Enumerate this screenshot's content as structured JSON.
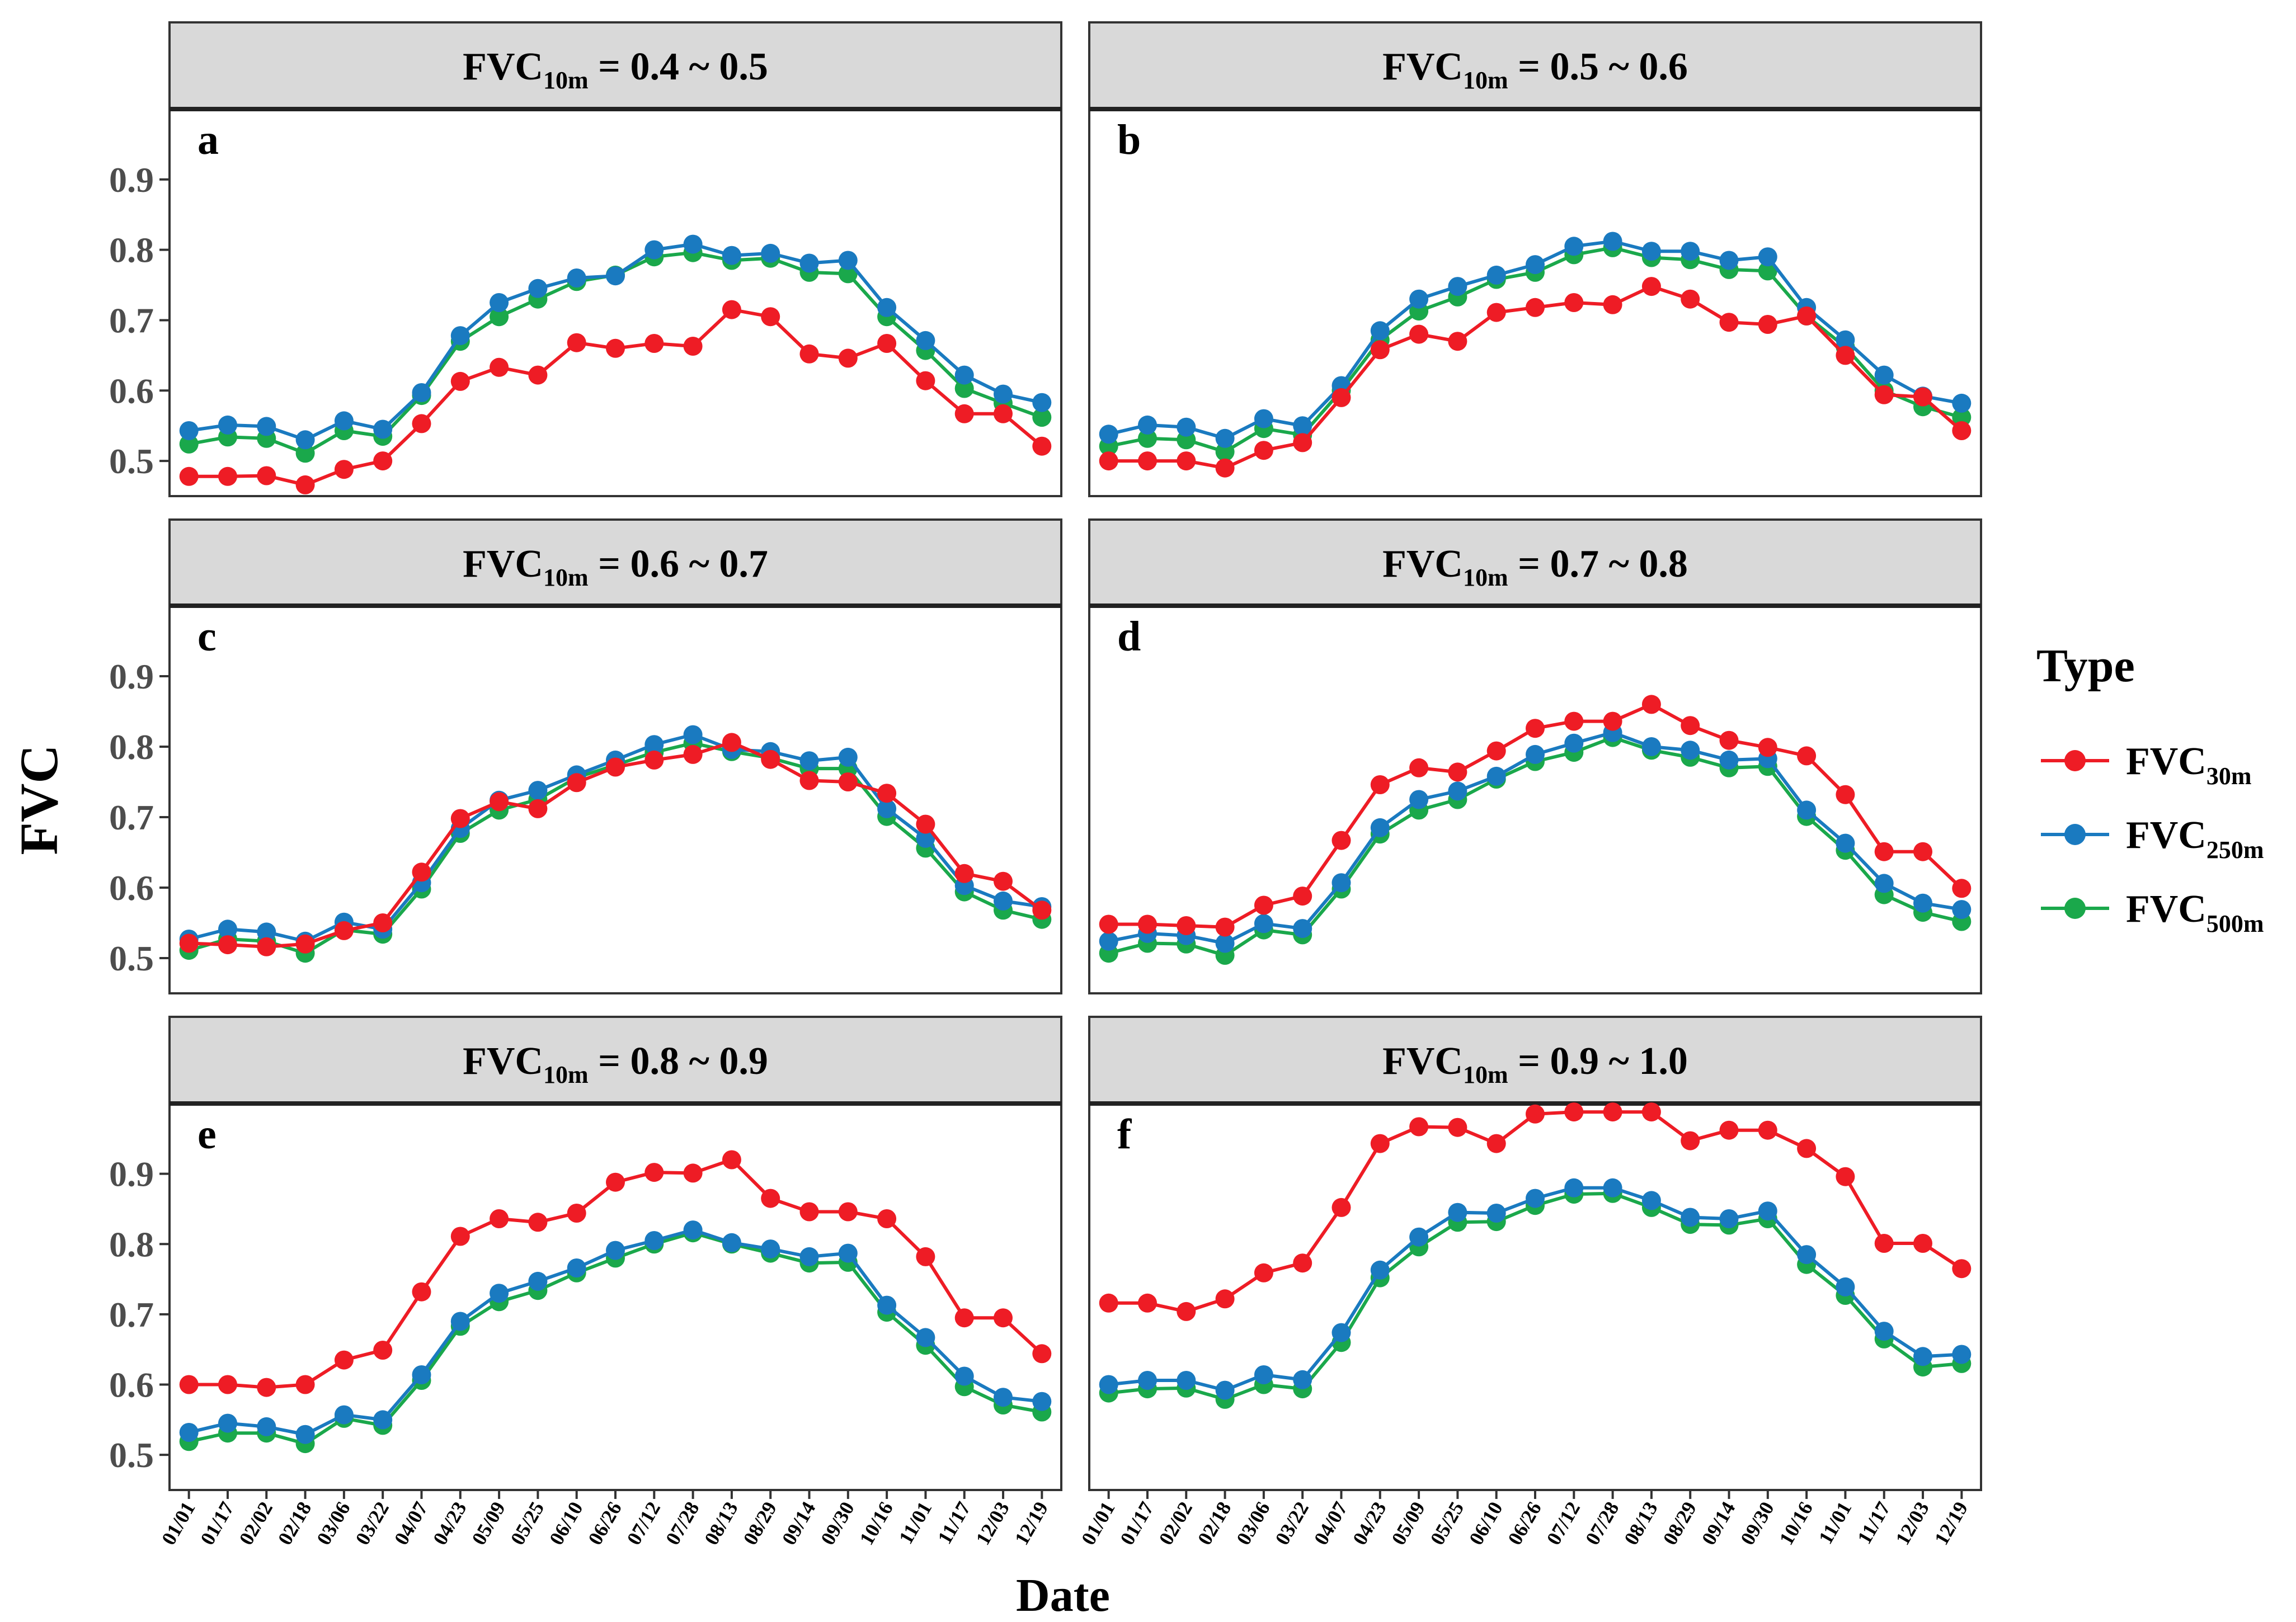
{
  "figure": {
    "ylabel": "FVC",
    "xlabel": "Date",
    "legend_title": "Type"
  },
  "legend": [
    {
      "key": "FVC30",
      "base": "FVC",
      "sub": "30m",
      "color": "#ee1c25"
    },
    {
      "key": "FVC250",
      "base": "FVC",
      "sub": "250m",
      "color": "#1a7ac0"
    },
    {
      "key": "FVC500",
      "base": "FVC",
      "sub": "500m",
      "color": "#1aa84b"
    }
  ],
  "chart_data": {
    "type": "line",
    "x": [
      "01/01",
      "01/17",
      "02/02",
      "02/18",
      "03/06",
      "03/22",
      "04/07",
      "04/23",
      "05/09",
      "05/25",
      "06/10",
      "06/26",
      "07/12",
      "07/28",
      "08/13",
      "08/29",
      "09/14",
      "09/30",
      "10/16",
      "11/01",
      "11/17",
      "12/03",
      "12/19"
    ],
    "ylabel": "FVC",
    "xlabel": "Date",
    "ylim": [
      0.45,
      1.0
    ],
    "yticks": [
      0.5,
      0.6,
      0.7,
      0.8,
      0.9
    ],
    "legend_position": "right",
    "panels": [
      {
        "letter": "a",
        "strip": {
          "base": "FVC",
          "sub": "10m",
          "rest": " = 0.4 ~ 0.5"
        },
        "series": [
          {
            "name": "FVC30m",
            "values": [
              0.478,
              0.478,
              0.479,
              0.466,
              0.488,
              0.5,
              0.553,
              0.613,
              0.633,
              0.622,
              0.668,
              0.66,
              0.667,
              0.663,
              0.715,
              0.705,
              0.652,
              0.646,
              0.667,
              0.614,
              0.567,
              0.567,
              0.521
            ]
          },
          {
            "name": "FVC250m",
            "values": [
              0.543,
              0.551,
              0.549,
              0.53,
              0.557,
              0.545,
              0.597,
              0.678,
              0.725,
              0.745,
              0.76,
              0.763,
              0.8,
              0.808,
              0.792,
              0.795,
              0.781,
              0.785,
              0.718,
              0.671,
              0.622,
              0.595,
              0.583
            ]
          },
          {
            "name": "FVC500m",
            "values": [
              0.524,
              0.534,
              0.532,
              0.511,
              0.543,
              0.535,
              0.593,
              0.67,
              0.705,
              0.73,
              0.755,
              0.764,
              0.79,
              0.796,
              0.785,
              0.788,
              0.768,
              0.766,
              0.705,
              0.657,
              0.603,
              0.582,
              0.562
            ]
          }
        ]
      },
      {
        "letter": "b",
        "strip": {
          "base": "FVC",
          "sub": "10m",
          "rest": " = 0.5 ~ 0.6"
        },
        "series": [
          {
            "name": "FVC30m",
            "values": [
              0.5,
              0.5,
              0.5,
              0.49,
              0.515,
              0.526,
              0.59,
              0.658,
              0.68,
              0.67,
              0.711,
              0.718,
              0.725,
              0.722,
              0.748,
              0.73,
              0.697,
              0.694,
              0.706,
              0.65,
              0.594,
              0.591,
              0.543
            ]
          },
          {
            "name": "FVC250m",
            "values": [
              0.538,
              0.551,
              0.548,
              0.532,
              0.56,
              0.55,
              0.607,
              0.685,
              0.73,
              0.748,
              0.764,
              0.779,
              0.805,
              0.812,
              0.798,
              0.798,
              0.785,
              0.79,
              0.718,
              0.672,
              0.622,
              0.592,
              0.582
            ]
          },
          {
            "name": "FVC500m",
            "values": [
              0.521,
              0.532,
              0.53,
              0.513,
              0.546,
              0.537,
              0.6,
              0.672,
              0.713,
              0.733,
              0.758,
              0.768,
              0.793,
              0.803,
              0.789,
              0.786,
              0.772,
              0.77,
              0.706,
              0.662,
              0.6,
              0.577,
              0.562
            ]
          }
        ]
      },
      {
        "letter": "c",
        "strip": {
          "base": "FVC",
          "sub": "10m",
          "rest": " = 0.6 ~ 0.7"
        },
        "series": [
          {
            "name": "FVC30m",
            "values": [
              0.521,
              0.519,
              0.516,
              0.52,
              0.539,
              0.55,
              0.622,
              0.698,
              0.722,
              0.712,
              0.749,
              0.771,
              0.781,
              0.789,
              0.806,
              0.782,
              0.752,
              0.75,
              0.734,
              0.69,
              0.62,
              0.609,
              0.568
            ]
          },
          {
            "name": "FVC250m",
            "values": [
              0.527,
              0.541,
              0.537,
              0.524,
              0.551,
              0.541,
              0.607,
              0.684,
              0.724,
              0.738,
              0.76,
              0.781,
              0.803,
              0.817,
              0.796,
              0.793,
              0.78,
              0.785,
              0.712,
              0.67,
              0.603,
              0.581,
              0.573
            ]
          },
          {
            "name": "FVC500m",
            "values": [
              0.511,
              0.527,
              0.524,
              0.507,
              0.54,
              0.534,
              0.598,
              0.677,
              0.71,
              0.725,
              0.756,
              0.774,
              0.792,
              0.805,
              0.793,
              0.784,
              0.769,
              0.769,
              0.701,
              0.656,
              0.594,
              0.568,
              0.555
            ]
          }
        ]
      },
      {
        "letter": "d",
        "strip": {
          "base": "FVC",
          "sub": "10m",
          "rest": " = 0.7 ~ 0.8"
        },
        "series": [
          {
            "name": "FVC30m",
            "values": [
              0.548,
              0.548,
              0.546,
              0.544,
              0.575,
              0.588,
              0.667,
              0.746,
              0.77,
              0.764,
              0.794,
              0.826,
              0.836,
              0.836,
              0.86,
              0.83,
              0.809,
              0.799,
              0.787,
              0.732,
              0.651,
              0.651,
              0.599
            ]
          },
          {
            "name": "FVC250m",
            "values": [
              0.524,
              0.535,
              0.532,
              0.521,
              0.549,
              0.542,
              0.607,
              0.685,
              0.725,
              0.737,
              0.758,
              0.789,
              0.805,
              0.82,
              0.8,
              0.795,
              0.781,
              0.783,
              0.71,
              0.663,
              0.606,
              0.578,
              0.569
            ]
          },
          {
            "name": "FVC500m",
            "values": [
              0.507,
              0.521,
              0.52,
              0.504,
              0.54,
              0.533,
              0.598,
              0.676,
              0.71,
              0.725,
              0.754,
              0.779,
              0.792,
              0.813,
              0.795,
              0.785,
              0.77,
              0.772,
              0.701,
              0.653,
              0.59,
              0.565,
              0.552
            ]
          }
        ]
      },
      {
        "letter": "e",
        "strip": {
          "base": "FVC",
          "sub": "10m",
          "rest": " = 0.8 ~ 0.9"
        },
        "series": [
          {
            "name": "FVC30m",
            "values": [
              0.6,
              0.6,
              0.596,
              0.6,
              0.635,
              0.649,
              0.732,
              0.811,
              0.836,
              0.831,
              0.844,
              0.888,
              0.902,
              0.901,
              0.92,
              0.865,
              0.846,
              0.846,
              0.836,
              0.782,
              0.695,
              0.695,
              0.644
            ]
          },
          {
            "name": "FVC250m",
            "values": [
              0.532,
              0.545,
              0.54,
              0.529,
              0.557,
              0.55,
              0.614,
              0.69,
              0.73,
              0.747,
              0.766,
              0.791,
              0.805,
              0.82,
              0.802,
              0.793,
              0.782,
              0.787,
              0.713,
              0.667,
              0.612,
              0.582,
              0.576
            ]
          },
          {
            "name": "FVC500m",
            "values": [
              0.519,
              0.531,
              0.531,
              0.516,
              0.552,
              0.542,
              0.606,
              0.683,
              0.718,
              0.734,
              0.759,
              0.78,
              0.8,
              0.816,
              0.8,
              0.787,
              0.773,
              0.774,
              0.703,
              0.656,
              0.597,
              0.571,
              0.561
            ]
          }
        ]
      },
      {
        "letter": "f",
        "strip": {
          "base": "FVC",
          "sub": "10m",
          "rest": " = 0.9 ~ 1.0"
        },
        "series": [
          {
            "name": "FVC30m",
            "values": [
              0.716,
              0.716,
              0.704,
              0.722,
              0.759,
              0.773,
              0.852,
              0.943,
              0.967,
              0.966,
              0.943,
              0.985,
              0.988,
              0.988,
              0.988,
              0.947,
              0.962,
              0.962,
              0.936,
              0.896,
              0.801,
              0.801,
              0.765
            ]
          },
          {
            "name": "FVC250m",
            "values": [
              0.6,
              0.606,
              0.606,
              0.592,
              0.614,
              0.607,
              0.674,
              0.763,
              0.81,
              0.845,
              0.844,
              0.865,
              0.88,
              0.88,
              0.862,
              0.838,
              0.836,
              0.847,
              0.785,
              0.739,
              0.676,
              0.64,
              0.643
            ]
          },
          {
            "name": "FVC500m",
            "values": [
              0.588,
              0.594,
              0.595,
              0.579,
              0.6,
              0.594,
              0.66,
              0.752,
              0.796,
              0.831,
              0.832,
              0.855,
              0.871,
              0.872,
              0.852,
              0.828,
              0.827,
              0.836,
              0.771,
              0.727,
              0.665,
              0.625,
              0.63
            ]
          }
        ]
      }
    ]
  }
}
